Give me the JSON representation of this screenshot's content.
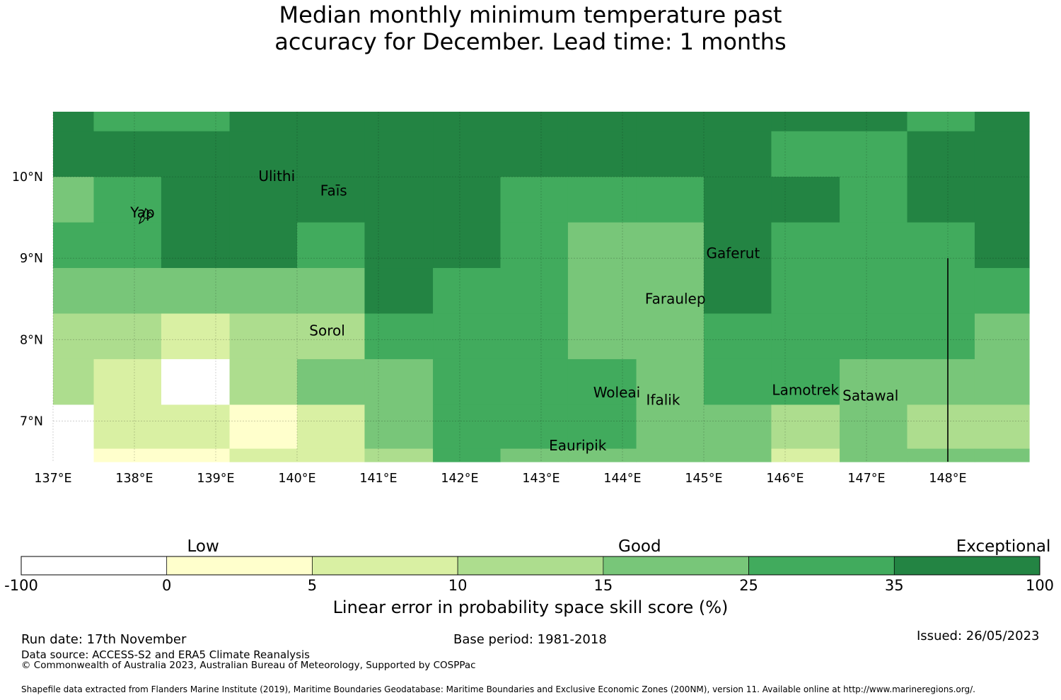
{
  "title": {
    "line1": "Median monthly minimum temperature past",
    "line2": "accuracy for December. Lead time: 1 months"
  },
  "map": {
    "lon_range": [
      137,
      149
    ],
    "lat_range": [
      6.5,
      10.8
    ],
    "lon_ticks": [
      "137°E",
      "138°E",
      "139°E",
      "140°E",
      "141°E",
      "142°E",
      "143°E",
      "144°E",
      "145°E",
      "146°E",
      "147°E",
      "148°E"
    ],
    "lon_tick_values": [
      137,
      138,
      139,
      140,
      141,
      142,
      143,
      144,
      145,
      146,
      147,
      148
    ],
    "lat_ticks": [
      "10°N",
      "9°N",
      "8°N",
      "7°N"
    ],
    "lat_tick_values": [
      10,
      9,
      8,
      7
    ],
    "grid_lon_edges": [
      137.0,
      137.5,
      138.33,
      139.17,
      140.0,
      140.83,
      141.67,
      142.5,
      143.33,
      144.17,
      145.0,
      145.83,
      146.67,
      147.5,
      148.33,
      149.0
    ],
    "grid_lat_edges": [
      10.8,
      10.56,
      10.0,
      9.44,
      8.88,
      8.32,
      7.76,
      7.2,
      6.66,
      6.5
    ],
    "grid_classes": [
      [
        6,
        5,
        5,
        6,
        6,
        6,
        6,
        6,
        6,
        6,
        6,
        6,
        6,
        5,
        6
      ],
      [
        6,
        6,
        6,
        6,
        6,
        6,
        6,
        6,
        6,
        6,
        6,
        5,
        5,
        6,
        6
      ],
      [
        4,
        5,
        6,
        6,
        6,
        6,
        6,
        5,
        5,
        5,
        6,
        6,
        5,
        6,
        6
      ],
      [
        5,
        5,
        6,
        6,
        5,
        6,
        6,
        5,
        4,
        4,
        6,
        5,
        5,
        5,
        6
      ],
      [
        4,
        4,
        4,
        4,
        4,
        6,
        5,
        5,
        4,
        4,
        6,
        5,
        5,
        5,
        5
      ],
      [
        3,
        3,
        2,
        3,
        3,
        5,
        5,
        5,
        4,
        4,
        5,
        5,
        5,
        5,
        4
      ],
      [
        3,
        2,
        0,
        3,
        4,
        4,
        5,
        5,
        5,
        4,
        5,
        5,
        4,
        4,
        4
      ],
      [
        0,
        2,
        2,
        1,
        2,
        4,
        5,
        5,
        5,
        4,
        4,
        3,
        4,
        3,
        3
      ],
      [
        0,
        1,
        1,
        2,
        2,
        3,
        5,
        4,
        4,
        4,
        4,
        2,
        4,
        4,
        4
      ]
    ],
    "places": [
      {
        "name": "Ulithi",
        "lon": 139.75,
        "lat": 9.95
      },
      {
        "name": "Faīs",
        "lon": 140.45,
        "lat": 9.77
      },
      {
        "name": "Yap",
        "lon": 138.1,
        "lat": 9.5
      },
      {
        "name": "Gaferut",
        "lon": 145.36,
        "lat": 9.0
      },
      {
        "name": "Faraulep",
        "lon": 144.65,
        "lat": 8.44
      },
      {
        "name": "Sorol",
        "lon": 140.37,
        "lat": 8.05
      },
      {
        "name": "Woleai",
        "lon": 143.93,
        "lat": 7.29
      },
      {
        "name": "Ifalik",
        "lon": 144.5,
        "lat": 7.2
      },
      {
        "name": "Lamotrek",
        "lon": 146.25,
        "lat": 7.32
      },
      {
        "name": "Satawal",
        "lon": 147.05,
        "lat": 7.25
      },
      {
        "name": "Eauripik",
        "lon": 143.45,
        "lat": 6.64
      }
    ],
    "boundary_line": {
      "lon": 148.0,
      "lat_from": 6.5,
      "lat_to": 9.0
    }
  },
  "legend": {
    "captions": [
      {
        "label": "Low",
        "value": 2.5
      },
      {
        "label": "Good",
        "value": 8.5
      },
      {
        "label": "Exceptional",
        "value": 13.5
      }
    ],
    "tick_labels": [
      "-100",
      "0",
      "5",
      "10",
      "15",
      "25",
      "35",
      "100"
    ],
    "colors": [
      "#ffffff",
      "#ffffcc",
      "#d9f0a3",
      "#addd8e",
      "#78c679",
      "#41ab5d",
      "#238443"
    ],
    "axis_label": "Linear error in probability space skill score (%)"
  },
  "footer": {
    "run_date": "Run date: 17th November",
    "base_period": "Base period: 1981-2018",
    "issued": "Issued: 26/05/2023",
    "data_source": "Data source: ACCESS-S2 and ERA5 Climate Reanalysis",
    "copyright": "© Commonwealth of Australia 2023, Australian Bureau of Meteorology, Supported by COSPPac",
    "shapefile": "Shapefile data extracted from Flanders Marine Institute (2019), Maritime Boundaries Geodatabase: Maritime Boundaries and Exclusive Economic Zones (200NM), version 11. Available online at http://www.marineregions.org/."
  }
}
